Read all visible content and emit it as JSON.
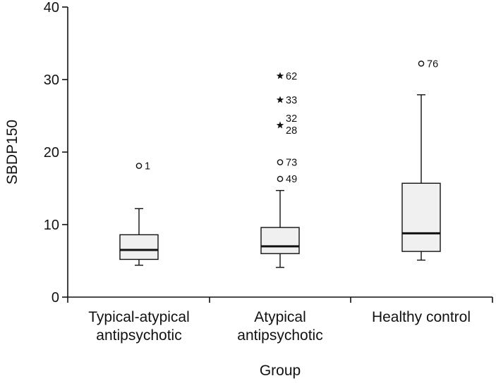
{
  "chart_data": {
    "type": "boxplot",
    "xlabel": "Group",
    "ylabel": "SBDP150",
    "ylim": [
      0,
      40
    ],
    "yticks": [
      "0",
      "10",
      "20",
      "30",
      "40"
    ],
    "grid": false,
    "colors": {
      "box_fill": "#f0f0f0",
      "stroke": "#111111"
    },
    "groups": [
      {
        "category_lines": [
          "Typical-atypical",
          "antipsychotic"
        ],
        "whisker_low": 4.4,
        "q1": 5.2,
        "median": 6.5,
        "q3": 8.6,
        "whisker_high": 12.2,
        "outliers": [
          {
            "value": 18.1,
            "marker": "circle",
            "label": "1"
          }
        ]
      },
      {
        "category_lines": [
          "Atypical",
          "antipsychotic"
        ],
        "whisker_low": 4.1,
        "q1": 6.0,
        "median": 7.0,
        "q3": 9.6,
        "whisker_high": 14.7,
        "outliers": [
          {
            "value": 30.5,
            "marker": "star",
            "label": "62"
          },
          {
            "value": 27.2,
            "marker": "star",
            "label": "33"
          },
          {
            "value": 23.7,
            "marker": "star",
            "label": "32\n28"
          },
          {
            "value": 18.6,
            "marker": "circle",
            "label": "73"
          },
          {
            "value": 16.3,
            "marker": "circle",
            "label": "49"
          }
        ]
      },
      {
        "category_lines": [
          "Healthy control"
        ],
        "whisker_low": 5.1,
        "q1": 6.3,
        "median": 8.8,
        "q3": 15.7,
        "whisker_high": 27.9,
        "outliers": [
          {
            "value": 32.2,
            "marker": "circle",
            "label": "76"
          }
        ]
      }
    ]
  }
}
